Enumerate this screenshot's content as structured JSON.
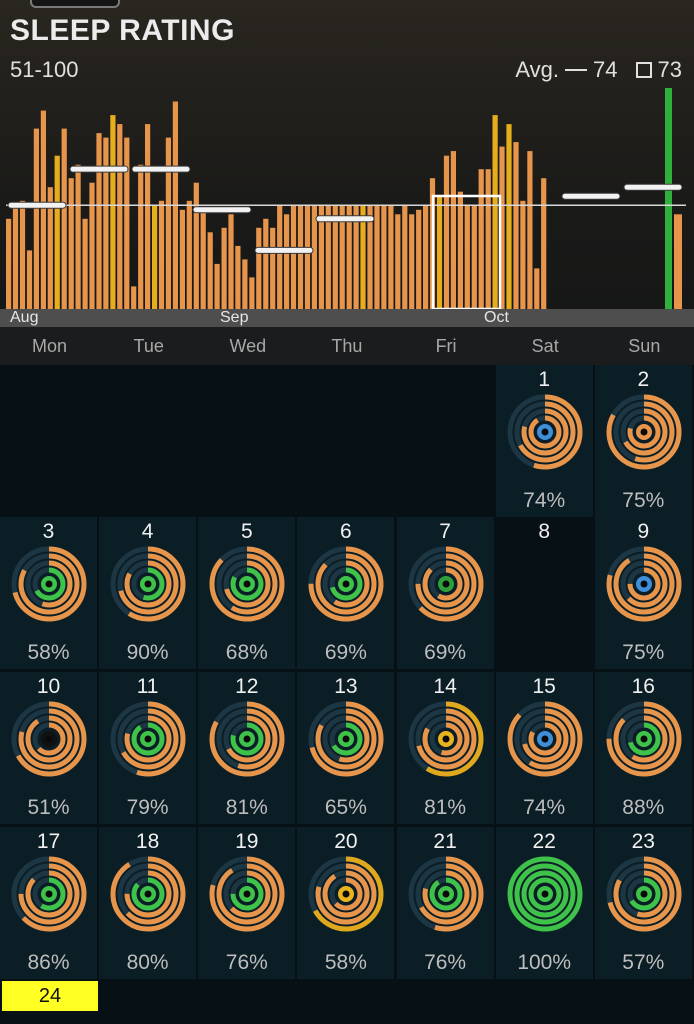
{
  "header": {
    "title": "SLEEP RATING",
    "range": "51-100",
    "avg_label": "Avg.",
    "avg_line_value": "74",
    "avg_box_value": "73"
  },
  "chart_data": {
    "type": "bar",
    "title": "SLEEP RATING",
    "subtitle": "51-100",
    "ylim": [
      51,
      100
    ],
    "average_line": 74,
    "month_labels": [
      "Aug",
      "Sep",
      "Oct"
    ],
    "weekday_labels": [
      "Mon",
      "Tue",
      "Wed",
      "Thu",
      "Fri",
      "Sat",
      "Sun"
    ],
    "weekly_averages": [
      74,
      82,
      82,
      73,
      64,
      71,
      75,
      76,
      78
    ],
    "values": [
      71,
      74,
      75,
      64,
      91,
      95,
      78,
      85,
      91,
      80,
      83,
      71,
      79,
      90,
      89,
      94,
      92,
      89,
      56,
      83,
      92,
      74,
      75,
      89,
      97,
      73,
      75,
      79,
      73,
      68,
      61,
      69,
      72,
      65,
      62,
      58,
      69,
      71,
      69,
      74,
      72,
      74,
      74,
      74,
      74,
      74,
      74,
      74,
      74,
      74,
      74,
      74,
      74,
      74,
      74,
      74,
      72,
      74,
      72,
      73,
      74,
      80,
      76,
      85,
      86,
      77,
      74,
      74,
      82,
      82,
      94,
      87,
      92,
      88,
      75,
      86,
      60,
      80
    ],
    "highlight_week_index": 6,
    "green_bar_value": 100
  },
  "calendar": {
    "days": [
      {
        "day": "1",
        "pct": "74%",
        "center": "#3f8ed8",
        "col": 5,
        "row": 0
      },
      {
        "day": "2",
        "pct": "75%",
        "center": "#e8954c",
        "col": 6,
        "row": 0
      },
      {
        "day": "3",
        "pct": "58%",
        "center": "#3ec24a",
        "col": 0,
        "row": 1
      },
      {
        "day": "4",
        "pct": "90%",
        "center": "#3ec24a",
        "col": 1,
        "row": 1
      },
      {
        "day": "5",
        "pct": "68%",
        "center": "#3ec24a",
        "col": 2,
        "row": 1
      },
      {
        "day": "6",
        "pct": "69%",
        "center": "#3ec24a",
        "col": 3,
        "row": 1
      },
      {
        "day": "7",
        "pct": "69%",
        "center": "#2ea03a",
        "col": 4,
        "row": 1
      },
      {
        "day": "8",
        "pct": "",
        "center": "",
        "col": 5,
        "row": 1
      },
      {
        "day": "9",
        "pct": "75%",
        "center": "#3f8ed8",
        "col": 6,
        "row": 1
      },
      {
        "day": "10",
        "pct": "51%",
        "center": "#111111",
        "col": 0,
        "row": 2
      },
      {
        "day": "11",
        "pct": "79%",
        "center": "#3ec24a",
        "col": 1,
        "row": 2
      },
      {
        "day": "12",
        "pct": "81%",
        "center": "#3ec24a",
        "col": 2,
        "row": 2
      },
      {
        "day": "13",
        "pct": "65%",
        "center": "#3ec24a",
        "col": 3,
        "row": 2
      },
      {
        "day": "14",
        "pct": "81%",
        "center": "#e8b41e",
        "col": 4,
        "row": 2
      },
      {
        "day": "15",
        "pct": "74%",
        "center": "#3f8ed8",
        "col": 5,
        "row": 2
      },
      {
        "day": "16",
        "pct": "88%",
        "center": "#3ec24a",
        "col": 6,
        "row": 2
      },
      {
        "day": "17",
        "pct": "86%",
        "center": "#3ec24a",
        "col": 0,
        "row": 3
      },
      {
        "day": "18",
        "pct": "80%",
        "center": "#3ec24a",
        "col": 1,
        "row": 3
      },
      {
        "day": "19",
        "pct": "76%",
        "center": "#3ec24a",
        "col": 2,
        "row": 3
      },
      {
        "day": "20",
        "pct": "58%",
        "center": "#e8b41e",
        "col": 3,
        "row": 3
      },
      {
        "day": "21",
        "pct": "76%",
        "center": "#3ec24a",
        "col": 4,
        "row": 3
      },
      {
        "day": "22",
        "pct": "100%",
        "center": "#3ec24a",
        "col": 5,
        "row": 3
      },
      {
        "day": "23",
        "pct": "57%",
        "center": "#3ec24a",
        "col": 6,
        "row": 3
      }
    ],
    "ring_colors": {
      "outer_ring": "#e8954c",
      "gold_ring": "#e0a81c",
      "green_ring": "#3ec24a",
      "empty_track": "#1c3644"
    }
  },
  "today": {
    "label": "24",
    "color": "#ffff24"
  },
  "colors": {
    "bar_orange": "#e8954c",
    "bar_gold": "#e6ae1d",
    "bar_green": "#2fb03c",
    "average_line": "#d8d8d8"
  }
}
